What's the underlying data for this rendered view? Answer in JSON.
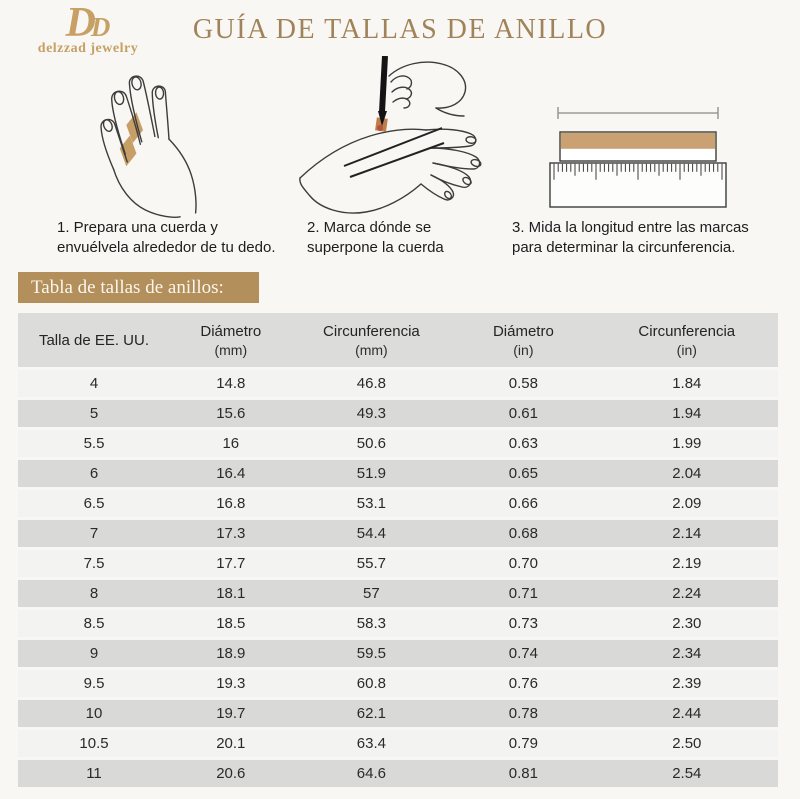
{
  "brand": {
    "name": "delzzad jewelry",
    "monogram_large": "D",
    "monogram_small": "D"
  },
  "title": "GUÍA DE TALLAS DE ANILLO",
  "steps": [
    {
      "line1": "1. Prepara una cuerda y",
      "line2": "envuélvela alrededor de tu dedo."
    },
    {
      "line1": "2. Marca dónde se",
      "line2": "superpone la cuerda"
    },
    {
      "line1": "3. Mida la longitud entre las marcas",
      "line2": "para determinar la circunferencia."
    }
  ],
  "table_section": {
    "heading": "Tabla de tallas de anillos:"
  },
  "table": {
    "columns": [
      {
        "label": "Talla de EE. UU.",
        "sub": ""
      },
      {
        "label": "Diámetro",
        "sub": "(mm)"
      },
      {
        "label": "Circunferencia",
        "sub": "(mm)"
      },
      {
        "label": "Diámetro",
        "sub": "(in)"
      },
      {
        "label": "Circunferencia",
        "sub": "(in)"
      }
    ],
    "rows": [
      [
        "4",
        "14.8",
        "46.8",
        "0.58",
        "1.84"
      ],
      [
        "5",
        "15.6",
        "49.3",
        "0.61",
        "1.94"
      ],
      [
        "5.5",
        "16",
        "50.6",
        "0.63",
        "1.99"
      ],
      [
        "6",
        "16.4",
        "51.9",
        "0.65",
        "2.04"
      ],
      [
        "6.5",
        "16.8",
        "53.1",
        "0.66",
        "2.09"
      ],
      [
        "7",
        "17.3",
        "54.4",
        "0.68",
        "2.14"
      ],
      [
        "7.5",
        "17.7",
        "55.7",
        "0.70",
        "2.19"
      ],
      [
        "8",
        "18.1",
        "57",
        "0.71",
        "2.24"
      ],
      [
        "8.5",
        "18.5",
        "58.3",
        "0.73",
        "2.30"
      ],
      [
        "9",
        "18.9",
        "59.5",
        "0.74",
        "2.34"
      ],
      [
        "9.5",
        "19.3",
        "60.8",
        "0.76",
        "2.39"
      ],
      [
        "10",
        "19.7",
        "62.1",
        "0.78",
        "2.44"
      ],
      [
        "10.5",
        "20.1",
        "63.4",
        "0.79",
        "2.50"
      ],
      [
        "11",
        "20.6",
        "64.6",
        "0.81",
        "2.54"
      ]
    ]
  },
  "colors": {
    "accent_gold": "#b38f5b",
    "logo_gold": "#c6a065",
    "title_gold": "#a1835a",
    "band_tan": "#c69e66",
    "mark_orange": "#c07c4c",
    "header_gray": "#dcdcda",
    "row_light": "#f3f3f1",
    "row_dark": "#d9d9d7"
  }
}
